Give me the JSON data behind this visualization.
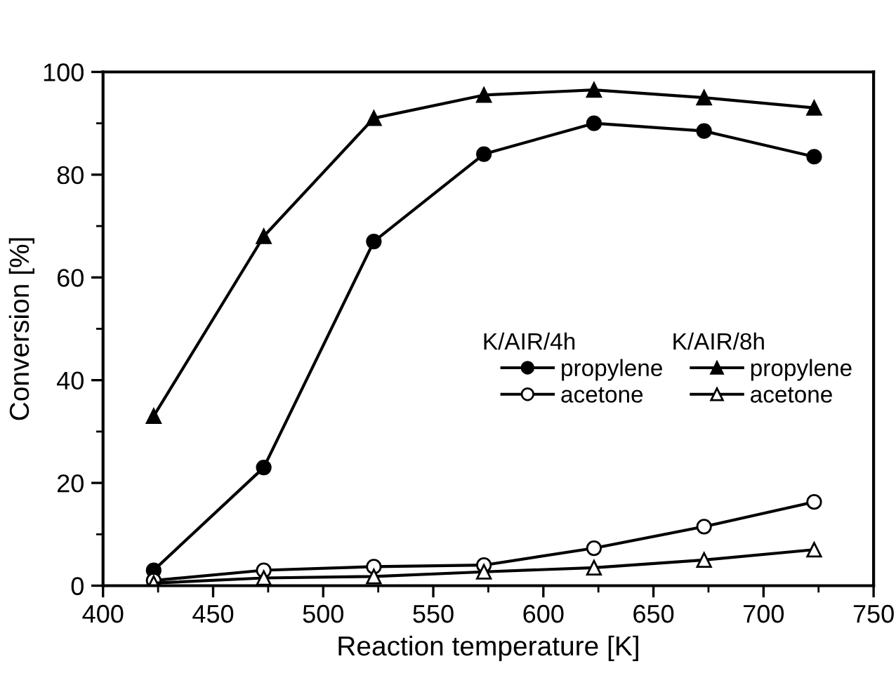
{
  "chart_data": {
    "type": "line",
    "xlabel": "Reaction temperature [K]",
    "ylabel": "Conversion [%]",
    "x": [
      423,
      473,
      523,
      573,
      623,
      673,
      723
    ],
    "series": [
      {
        "name": "propylene",
        "color": "#000000",
        "marker": "circle",
        "values": [
          3,
          23,
          67,
          84,
          90,
          88.5,
          83.5
        ]
      },
      {
        "name": "acetone",
        "color": "#000000",
        "marker": "circle",
        "values": [
          1,
          3,
          3.7,
          4,
          7.3,
          11.5,
          16.3
        ]
      },
      {
        "name": "propylene",
        "color": "#000000",
        "marker": "triangle",
        "values": [
          33,
          68,
          91,
          95.5,
          96.5,
          95,
          93
        ]
      },
      {
        "name": "acetone",
        "color": "#000000",
        "marker": "triangle",
        "values": [
          0.5,
          1.5,
          1.8,
          2.7,
          3.5,
          5,
          7
        ]
      }
    ],
    "annotations": [
      "K/AIR/4h",
      "K/AIR/8h"
    ],
    "xlim": [
      400,
      750
    ],
    "xticks": [
      400,
      450,
      500,
      550,
      600,
      650,
      700,
      750
    ],
    "ylim": [
      0,
      100
    ],
    "yticks": [
      0,
      20,
      40,
      60,
      80,
      100
    ],
    "grid": false,
    "legend": "center right",
    "line_style": "solid"
  }
}
